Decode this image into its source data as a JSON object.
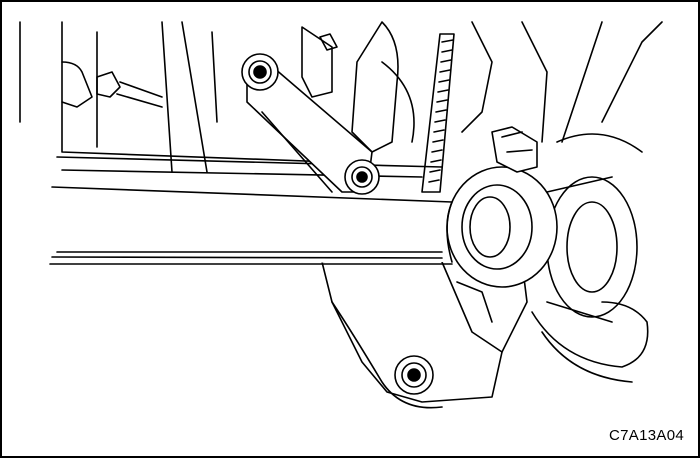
{
  "figure": {
    "code_label": "C7A13A04"
  },
  "colors": {
    "line": "#000000",
    "background": "#ffffff"
  }
}
